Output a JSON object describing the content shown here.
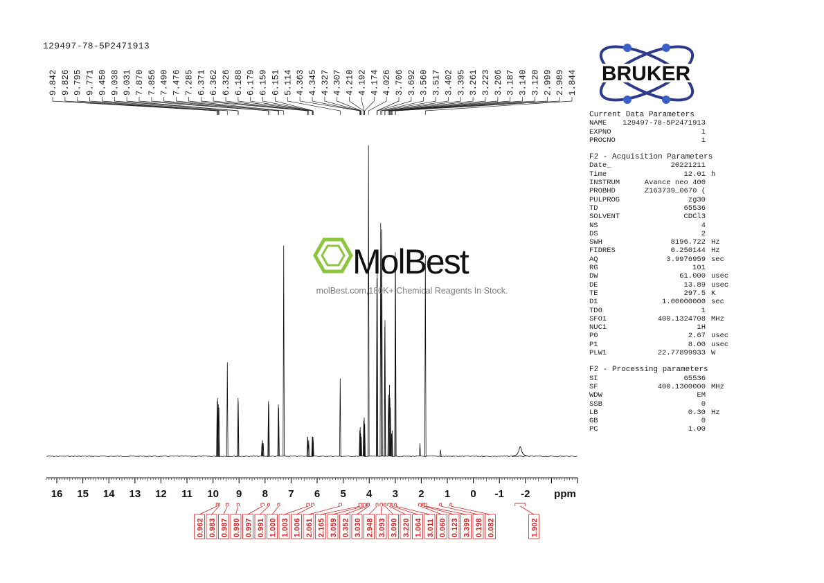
{
  "sample_title": "129497-78-5P2471913",
  "logo": {
    "text": "BRUKER",
    "icon": "atom-orbit-icon",
    "colors": {
      "orbit": "#2d3a8c",
      "dot": "#3a60c8",
      "text": "#111111"
    }
  },
  "watermark": {
    "brand": "MolBest",
    "tagline": "molBest.com,180K+ Chemical Reagents In Stock.",
    "icon": "benzene-hexagon-icon",
    "color": "#8cc63f"
  },
  "parameters": [
    {
      "heading": "Current Data Parameters",
      "rows": [
        {
          "key": "NAME",
          "value": "129497-78-5P2471913",
          "unit": ""
        },
        {
          "key": "EXPNO",
          "value": "1",
          "unit": ""
        },
        {
          "key": "PROCNO",
          "value": "1",
          "unit": ""
        }
      ]
    },
    {
      "heading": "F2 - Acquisition Parameters",
      "rows": [
        {
          "key": "Date_",
          "value": "20221211",
          "unit": ""
        },
        {
          "key": "Time",
          "value": "12.01",
          "unit": "h"
        },
        {
          "key": "INSTRUM",
          "value": "Avance neo 400",
          "unit": ""
        },
        {
          "key": "PROBHD",
          "value": "Z163739_0670 (",
          "unit": ""
        },
        {
          "key": "PULPROG",
          "value": "zg30",
          "unit": ""
        },
        {
          "key": "TD",
          "value": "65536",
          "unit": ""
        },
        {
          "key": "SOLVENT",
          "value": "CDCl3",
          "unit": ""
        },
        {
          "key": "NS",
          "value": "4",
          "unit": ""
        },
        {
          "key": "DS",
          "value": "2",
          "unit": ""
        },
        {
          "key": "SWH",
          "value": "8196.722",
          "unit": "Hz"
        },
        {
          "key": "FIDRES",
          "value": "0.250144",
          "unit": "Hz"
        },
        {
          "key": "AQ",
          "value": "3.9976959",
          "unit": "sec"
        },
        {
          "key": "RG",
          "value": "101",
          "unit": ""
        },
        {
          "key": "DW",
          "value": "61.000",
          "unit": "usec"
        },
        {
          "key": "DE",
          "value": "13.89",
          "unit": "usec"
        },
        {
          "key": "TE",
          "value": "297.5",
          "unit": "K"
        },
        {
          "key": "D1",
          "value": "1.00000000",
          "unit": "sec"
        },
        {
          "key": "TD0",
          "value": "1",
          "unit": ""
        },
        {
          "key": "SFO1",
          "value": "400.1324708",
          "unit": "MHz"
        },
        {
          "key": "NUC1",
          "value": "1H",
          "unit": ""
        },
        {
          "key": "P0",
          "value": "2.67",
          "unit": "usec"
        },
        {
          "key": "P1",
          "value": "8.00",
          "unit": "usec"
        },
        {
          "key": "PLW1",
          "value": "22.77899933",
          "unit": "W"
        }
      ]
    },
    {
      "heading": "F2 - Processing parameters",
      "rows": [
        {
          "key": "SI",
          "value": "65536",
          "unit": ""
        },
        {
          "key": "SF",
          "value": "400.1300000",
          "unit": "MHz"
        },
        {
          "key": "WDW",
          "value": "EM",
          "unit": ""
        },
        {
          "key": "SSB",
          "value": "0",
          "unit": ""
        },
        {
          "key": "LB",
          "value": "0.30",
          "unit": "Hz"
        },
        {
          "key": "GB",
          "value": "0",
          "unit": ""
        },
        {
          "key": "PC",
          "value": "1.00",
          "unit": ""
        }
      ]
    }
  ],
  "chart_data": {
    "type": "line",
    "xlabel": "ppm",
    "xlim": [
      16.4,
      -4.0
    ],
    "x_reversed": true,
    "major_ticks": [
      16,
      15,
      14,
      13,
      12,
      11,
      10,
      9,
      8,
      7,
      6,
      5,
      4,
      3,
      2,
      1,
      0,
      -1,
      -2
    ],
    "tick_labels": [
      "16",
      "15",
      "14",
      "13",
      "12",
      "11",
      "10",
      "9",
      "8",
      "7",
      "6",
      "5",
      "4",
      "3",
      "2",
      "1",
      "0",
      "-1",
      "-2"
    ],
    "peak_labels": [
      "9.842",
      "9.826",
      "9.795",
      "9.771",
      "9.450",
      "9.038",
      "9.031",
      "7.870",
      "7.856",
      "7.490",
      "7.476",
      "7.285",
      "6.371",
      "6.362",
      "6.326",
      "6.188",
      "6.179",
      "6.159",
      "6.151",
      "5.114",
      "4.363",
      "4.345",
      "4.327",
      "4.307",
      "4.210",
      "4.192",
      "4.174",
      "4.026",
      "3.706",
      "3.692",
      "3.560",
      "3.517",
      "3.402",
      "3.395",
      "3.261",
      "3.223",
      "3.206",
      "3.187",
      "3.140",
      "3.120",
      "2.999",
      "2.989",
      "1.844"
    ],
    "peaks": [
      {
        "ppm": 9.842,
        "height": 0.17
      },
      {
        "ppm": 9.826,
        "height": 0.18
      },
      {
        "ppm": 9.795,
        "height": 0.16
      },
      {
        "ppm": 9.771,
        "height": 0.15
      },
      {
        "ppm": 9.45,
        "height": 0.29
      },
      {
        "ppm": 9.038,
        "height": 0.18
      },
      {
        "ppm": 9.031,
        "height": 0.17
      },
      {
        "ppm": 8.12,
        "height": 0.04
      },
      {
        "ppm": 8.1,
        "height": 0.05
      },
      {
        "ppm": 8.07,
        "height": 0.04
      },
      {
        "ppm": 7.87,
        "height": 0.17
      },
      {
        "ppm": 7.856,
        "height": 0.16
      },
      {
        "ppm": 7.49,
        "height": 0.16
      },
      {
        "ppm": 7.476,
        "height": 0.15
      },
      {
        "ppm": 7.285,
        "height": 0.65
      },
      {
        "ppm": 6.371,
        "height": 0.06
      },
      {
        "ppm": 6.362,
        "height": 0.06
      },
      {
        "ppm": 6.326,
        "height": 0.05
      },
      {
        "ppm": 6.188,
        "height": 0.06
      },
      {
        "ppm": 6.179,
        "height": 0.06
      },
      {
        "ppm": 6.159,
        "height": 0.06
      },
      {
        "ppm": 6.151,
        "height": 0.05
      },
      {
        "ppm": 5.114,
        "height": 0.24
      },
      {
        "ppm": 4.363,
        "height": 0.08
      },
      {
        "ppm": 4.345,
        "height": 0.09
      },
      {
        "ppm": 4.327,
        "height": 0.07
      },
      {
        "ppm": 4.307,
        "height": 0.06
      },
      {
        "ppm": 4.21,
        "height": 0.11
      },
      {
        "ppm": 4.192,
        "height": 0.12
      },
      {
        "ppm": 4.174,
        "height": 0.1
      },
      {
        "ppm": 4.026,
        "height": 0.96
      },
      {
        "ppm": 3.706,
        "height": 0.55
      },
      {
        "ppm": 3.692,
        "height": 0.58
      },
      {
        "ppm": 3.56,
        "height": 0.72
      },
      {
        "ppm": 3.517,
        "height": 0.7
      },
      {
        "ppm": 3.402,
        "height": 0.4
      },
      {
        "ppm": 3.395,
        "height": 0.42
      },
      {
        "ppm": 3.261,
        "height": 0.19
      },
      {
        "ppm": 3.223,
        "height": 0.22
      },
      {
        "ppm": 3.206,
        "height": 0.18
      },
      {
        "ppm": 3.187,
        "height": 0.15
      },
      {
        "ppm": 3.14,
        "height": 0.07
      },
      {
        "ppm": 3.12,
        "height": 0.08
      },
      {
        "ppm": 2.999,
        "height": 0.63
      },
      {
        "ppm": 2.989,
        "height": 0.58
      },
      {
        "ppm": 2.05,
        "height": 0.04
      },
      {
        "ppm": 1.844,
        "height": 0.62
      },
      {
        "ppm": 1.26,
        "height": 0.02
      }
    ],
    "broad_peak": {
      "ppm": -1.8,
      "height": 0.03
    },
    "integrals": [
      {
        "value": "0.962",
        "from": 9.88,
        "to": 9.8
      },
      {
        "value": "0.983",
        "from": 9.8,
        "to": 9.74
      },
      {
        "value": "0.987",
        "from": 9.5,
        "to": 9.4
      },
      {
        "value": "0.980",
        "from": 9.08,
        "to": 8.99
      },
      {
        "value": "0.997",
        "from": 8.16,
        "to": 8.04
      },
      {
        "value": "0.991",
        "from": 7.9,
        "to": 7.83
      },
      {
        "value": "1.000",
        "from": 7.52,
        "to": 7.44
      },
      {
        "value": "1.003",
        "from": 6.4,
        "to": 6.3
      },
      {
        "value": "1.006",
        "from": 6.22,
        "to": 6.12
      },
      {
        "value": "2.061",
        "from": 5.16,
        "to": 5.06
      },
      {
        "value": "2.165",
        "from": 4.4,
        "to": 4.28
      },
      {
        "value": "3.059",
        "from": 4.24,
        "to": 4.14
      },
      {
        "value": "0.352",
        "from": 4.1,
        "to": 4.06
      },
      {
        "value": "3.030",
        "from": 4.05,
        "to": 3.99
      },
      {
        "value": "2.948",
        "from": 3.74,
        "to": 3.66
      },
      {
        "value": "3.093",
        "from": 3.58,
        "to": 3.49
      },
      {
        "value": "3.090",
        "from": 3.43,
        "to": 3.36
      },
      {
        "value": "3.220",
        "from": 3.29,
        "to": 3.17
      },
      {
        "value": "1.064",
        "from": 3.16,
        "to": 3.1
      },
      {
        "value": "3.011",
        "from": 3.03,
        "to": 2.96
      },
      {
        "value": "0.060",
        "from": 2.1,
        "to": 2.0
      },
      {
        "value": "0.123",
        "from": 1.95,
        "to": 1.88
      },
      {
        "value": "3.399",
        "from": 1.88,
        "to": 1.8
      },
      {
        "value": "0.198",
        "from": 1.3,
        "to": 1.22
      },
      {
        "value": "0.082",
        "from": 0.9,
        "to": 0.84
      },
      {
        "value": "1.902",
        "from": -1.6,
        "to": -2.0
      }
    ],
    "colors": {
      "spectrum": "#111111",
      "integral": "#d42020",
      "axis": "#111111"
    }
  }
}
